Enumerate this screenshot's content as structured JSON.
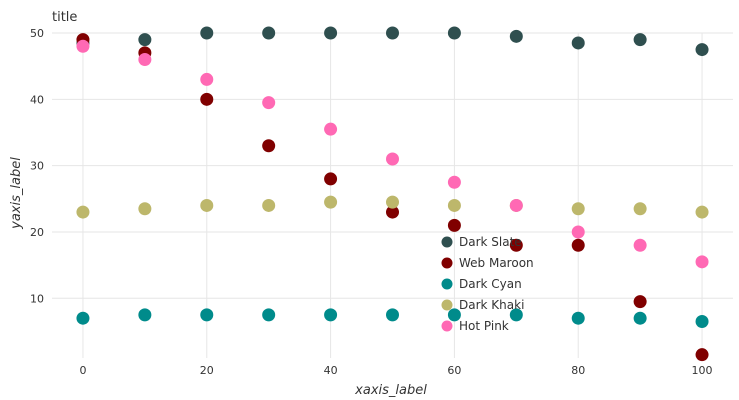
{
  "chart_data": {
    "type": "scatter",
    "title": "title",
    "xlabel": "xaxis_label",
    "ylabel": "yaxis_label",
    "xlim": [
      -5,
      105
    ],
    "ylim": [
      1,
      50
    ],
    "x_ticks": [
      0,
      20,
      40,
      60,
      80,
      100
    ],
    "y_ticks": [
      10,
      20,
      30,
      40,
      50
    ],
    "grid": true,
    "legend_position": "center-right",
    "x": [
      0,
      10,
      20,
      30,
      40,
      50,
      60,
      70,
      80,
      90,
      100
    ],
    "series": [
      {
        "name": "Dark Slate",
        "color": "#2f4f4f",
        "values": [
          48.5,
          49.0,
          50.0,
          50.0,
          50.0,
          50.0,
          50.0,
          49.5,
          48.5,
          49.0,
          47.5
        ]
      },
      {
        "name": "Web Maroon",
        "color": "#800000",
        "values": [
          49.0,
          47.0,
          40.0,
          33.0,
          28.0,
          23.0,
          21.0,
          18.0,
          18.0,
          9.5,
          1.5
        ]
      },
      {
        "name": "Dark Cyan",
        "color": "#008b8b",
        "values": [
          7.0,
          7.5,
          7.5,
          7.5,
          7.5,
          7.5,
          7.5,
          7.5,
          7.0,
          7.0,
          6.5
        ]
      },
      {
        "name": "Dark Khaki",
        "color": "#bdb76b",
        "values": [
          23.0,
          23.5,
          24.0,
          24.0,
          24.5,
          24.5,
          24.0,
          24.0,
          23.5,
          23.5,
          23.0
        ]
      },
      {
        "name": "Hot Pink",
        "color": "#ff69b4",
        "values": [
          48.0,
          46.0,
          43.0,
          39.5,
          35.5,
          31.0,
          27.5,
          24.0,
          20.0,
          18.0,
          15.5
        ]
      }
    ]
  }
}
